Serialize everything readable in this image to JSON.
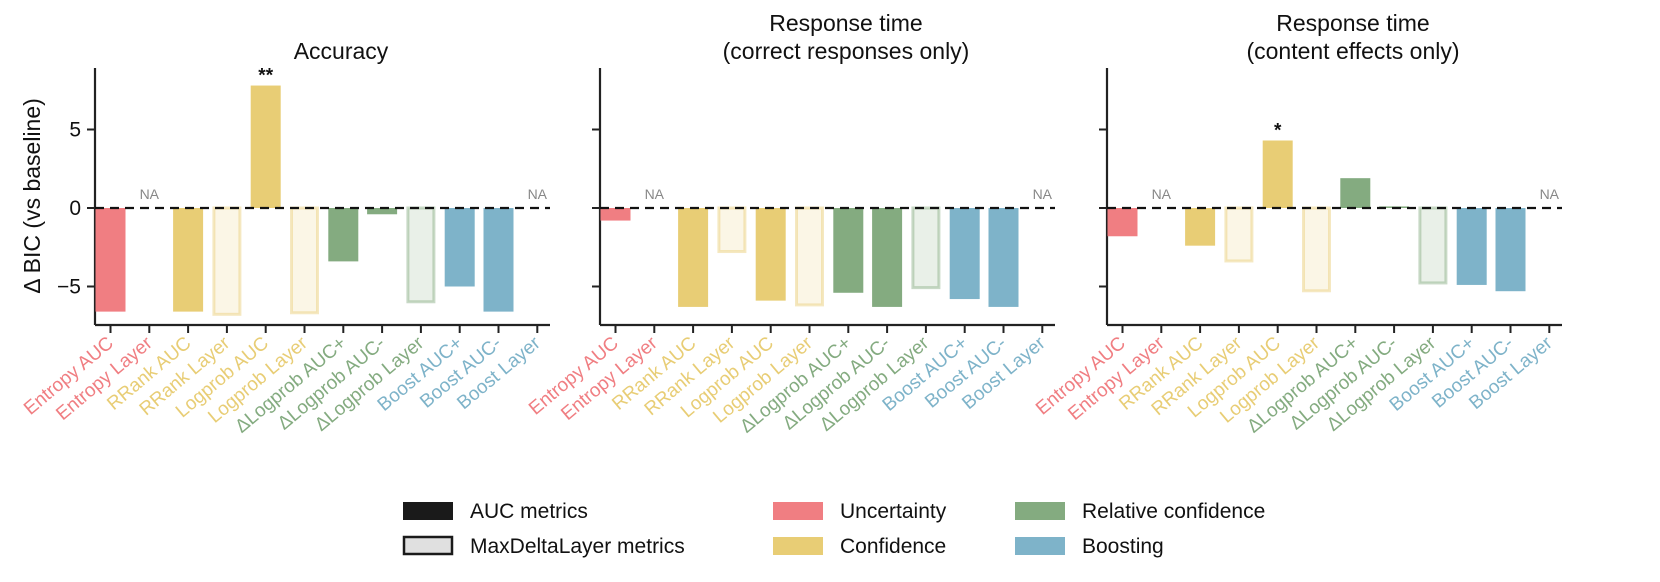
{
  "chart_data": {
    "type": "bar",
    "ylabel": "Δ BIC (vs baseline)",
    "ylim": [
      -7.5,
      8.5
    ],
    "yticks": [
      "5",
      "0",
      "−5"
    ],
    "categories": [
      "Entropy AUC",
      "Entropy Layer",
      "RRank AUC",
      "RRank Layer",
      "Logprob AUC",
      "Logprob Layer",
      "ΔLogprob AUC+",
      "ΔLogprob AUC-",
      "ΔLogprob Layer",
      "Boost AUC+",
      "Boost AUC-",
      "Boost Layer"
    ],
    "category_groups": [
      "uncertainty",
      "uncertainty",
      "confidence",
      "confidence",
      "confidence",
      "confidence",
      "relative",
      "relative",
      "relative",
      "boosting",
      "boosting",
      "boosting"
    ],
    "category_kinds": [
      "auc",
      "layer",
      "auc",
      "layer",
      "auc",
      "layer",
      "auc",
      "auc",
      "layer",
      "auc",
      "auc",
      "layer"
    ],
    "na_label": "NA",
    "colors": {
      "uncertainty": "#F07E82",
      "confidence": "#E8CD75",
      "relative": "#84AB80",
      "boosting": "#7EB3C9"
    },
    "panels": [
      {
        "title": [
          "Accuracy"
        ],
        "values": [
          -6.6,
          null,
          -6.6,
          -6.9,
          7.8,
          -6.8,
          -3.4,
          -0.4,
          -6.1,
          -5.0,
          -6.6,
          null
        ],
        "annotations": [
          {
            "index": 4,
            "text": "**"
          }
        ]
      },
      {
        "title": [
          "Response time",
          "(correct responses only)"
        ],
        "values": [
          -0.8,
          null,
          -6.3,
          -2.9,
          -5.9,
          -6.3,
          -5.4,
          -6.3,
          -5.2,
          -5.8,
          -6.3,
          null
        ],
        "annotations": []
      },
      {
        "title": [
          "Response time",
          "(content effects only)"
        ],
        "values": [
          -1.8,
          null,
          -2.4,
          -3.5,
          4.3,
          -5.4,
          1.9,
          0.1,
          -4.9,
          -4.9,
          -5.3,
          null
        ],
        "annotations": [
          {
            "index": 4,
            "text": "*"
          }
        ]
      }
    ],
    "legend": {
      "auc": "AUC metrics",
      "layer": "MaxDeltaLayer metrics",
      "uncertainty": "Uncertainty",
      "confidence": "Confidence",
      "relative": "Relative confidence",
      "boosting": "Boosting"
    }
  }
}
